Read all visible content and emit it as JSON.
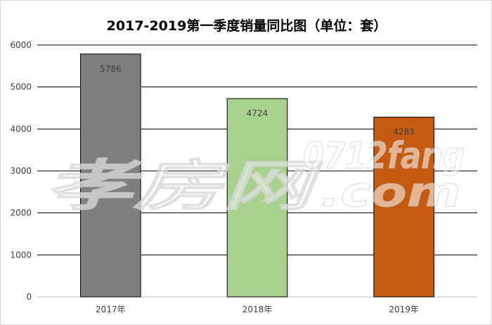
{
  "chart_data": {
    "type": "bar",
    "title": "2017-2019第一季度销量同比图（单位：套）",
    "categories": [
      "2017年",
      "2018年",
      "2019年"
    ],
    "values": [
      5786,
      4724,
      4283
    ],
    "data_labels": [
      "5786",
      "4724",
      "4283"
    ],
    "bar_colors": [
      "#7f7f7f",
      "#a9d18e",
      "#c55a11"
    ],
    "ylim": [
      0,
      6000
    ],
    "yticks": [
      0,
      1000,
      2000,
      3000,
      4000,
      5000,
      6000
    ],
    "ytick_labels": [
      "0",
      "1000",
      "2000",
      "3000",
      "4000",
      "5000",
      "6000"
    ],
    "grid": true,
    "legend": "none"
  },
  "watermark": {
    "logo_text": "孝房网",
    "site_text": "0712fang",
    "domain_text": ".com"
  }
}
